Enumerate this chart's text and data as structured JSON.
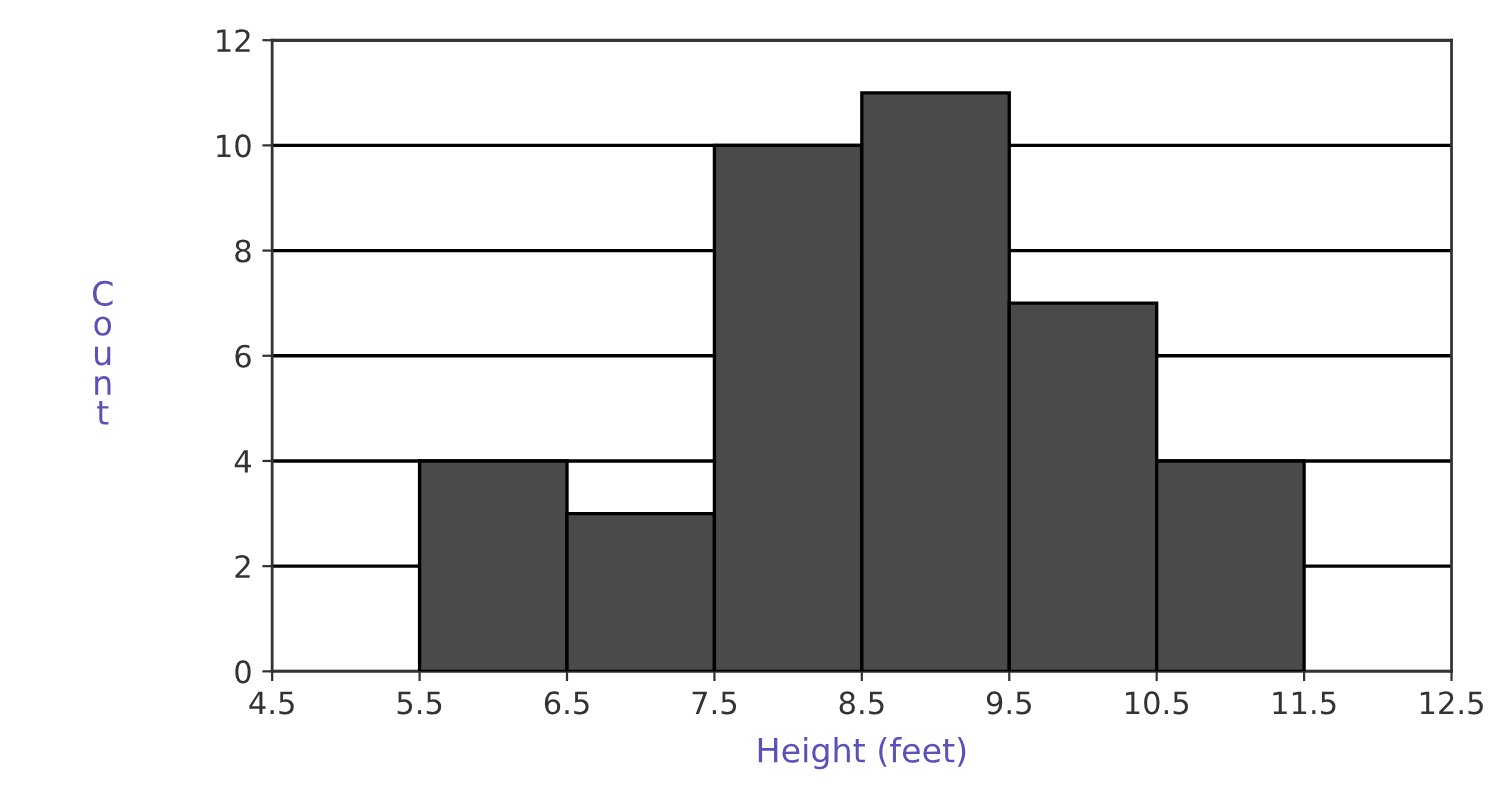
{
  "chart_data": {
    "type": "histogram",
    "xlabel": "Height (feet)",
    "ylabel": "Count",
    "bins": [
      5.5,
      6.5,
      7.5,
      8.5,
      9.5,
      10.5,
      11.5
    ],
    "values": [
      4,
      3,
      10,
      11,
      7,
      4
    ],
    "color": "#4a4a4a",
    "xlim": [
      4.5,
      12.5
    ],
    "xticks": [
      4.5,
      5.5,
      6.5,
      7.5,
      8.5,
      9.5,
      10.5,
      11.5,
      12.5
    ],
    "ylim": [
      0,
      12
    ],
    "yticks": [
      0,
      2,
      4,
      6,
      8,
      10,
      12
    ],
    "grid": "y"
  }
}
